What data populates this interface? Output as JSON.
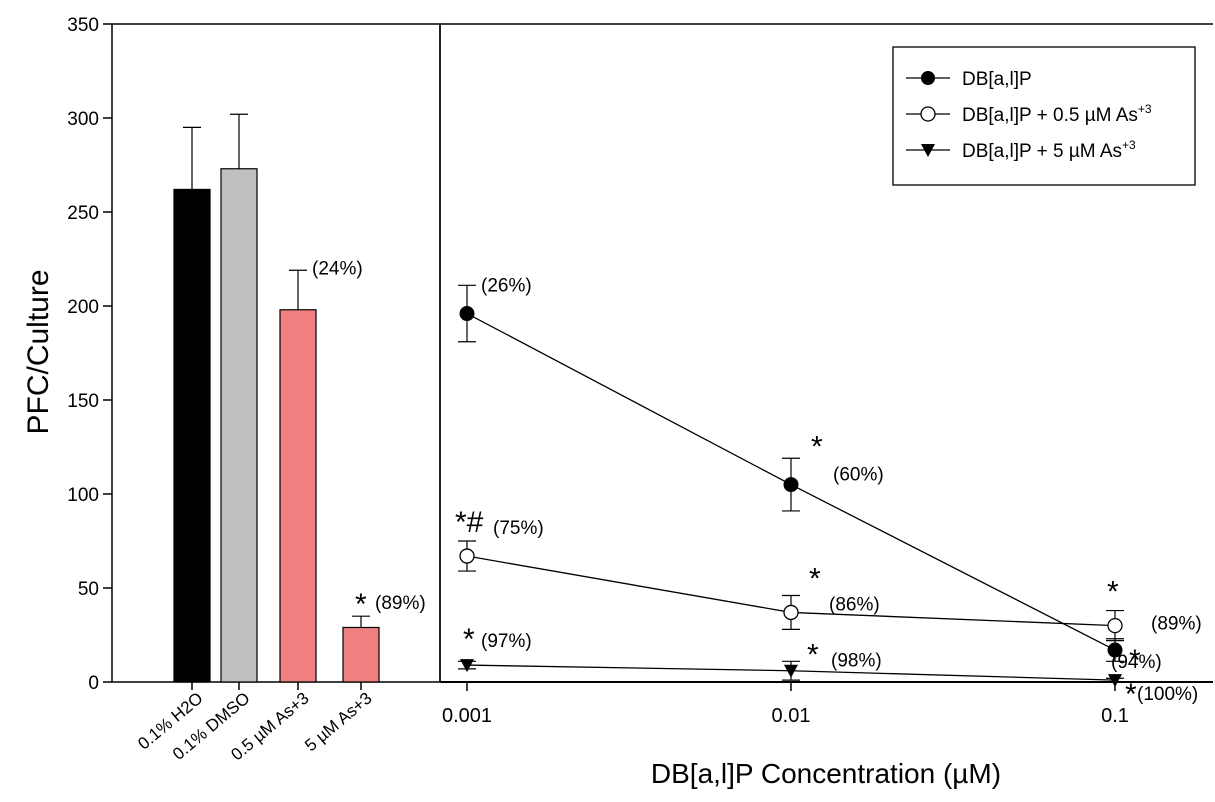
{
  "chart_data": [
    {
      "type": "bar",
      "categories": [
        "0.1% H2O",
        "0.1% DMSO",
        "0.5 µM As+3",
        "5 µM As+3"
      ],
      "values": [
        262,
        273,
        198,
        29
      ],
      "errors": [
        33,
        29,
        21,
        6
      ],
      "annotations": [
        "",
        "",
        "(24%)",
        "(89%)"
      ],
      "significance": [
        "",
        "",
        "",
        "*"
      ],
      "colors": [
        "#000000",
        "#c0c0c0",
        "#f08080",
        "#f08080"
      ],
      "ylabel": "PFC/Culture",
      "ylim": [
        0,
        350
      ],
      "yticks": [
        0,
        50,
        100,
        150,
        200,
        250,
        300,
        350
      ],
      "grid": false
    },
    {
      "type": "line",
      "x": [
        0.001,
        0.01,
        0.1
      ],
      "xscale": "log",
      "xticks": [
        "0.001",
        "0.01",
        "0.1"
      ],
      "xlabel": "DB[a,l]P Concentration (µM)",
      "ylim": [
        0,
        350
      ],
      "grid": false,
      "legend_position": "top-right",
      "series": [
        {
          "name": "DB[a,l]P",
          "marker": "filled-circle",
          "values": [
            196,
            105,
            17
          ],
          "errors": [
            15,
            14,
            6
          ],
          "annotations": [
            "(26%)",
            "(60%)",
            "(94%)"
          ],
          "significance": [
            "",
            "*",
            "*"
          ]
        },
        {
          "name": "DB[a,l]P + 0.5 µM As",
          "name_sup": "+3",
          "marker": "open-circle",
          "values": [
            67,
            37,
            30
          ],
          "errors": [
            8,
            9,
            8
          ],
          "annotations": [
            "(75%)",
            "(86%)",
            "(89%)"
          ],
          "significance": [
            "*#",
            "*",
            "*"
          ]
        },
        {
          "name": "DB[a,l]P + 5 µM As",
          "name_sup": "+3",
          "marker": "filled-triangle-down",
          "values": [
            9,
            6,
            1
          ],
          "errors": [
            2,
            5,
            1
          ],
          "annotations": [
            "(97%)",
            "(98%)",
            "(100%)"
          ],
          "significance": [
            "*",
            "*",
            "*"
          ]
        }
      ]
    }
  ]
}
